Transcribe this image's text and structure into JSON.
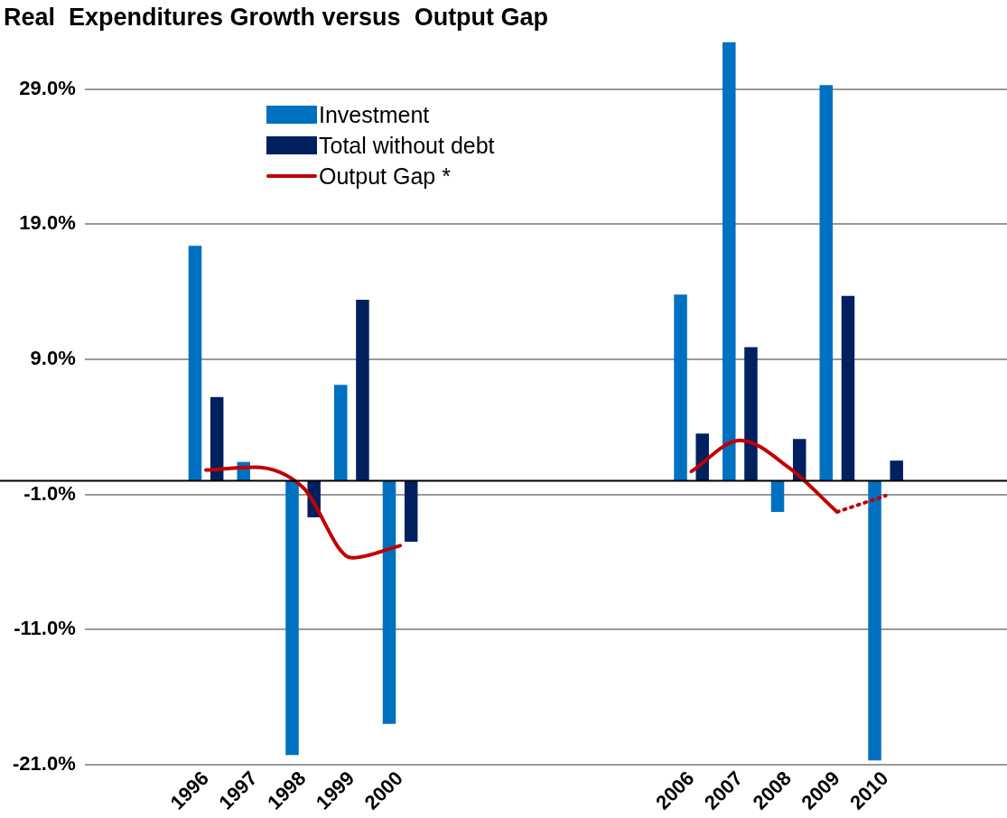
{
  "chart_data": {
    "type": "bar",
    "title": "Real  Expenditures Growth versus  Output Gap",
    "categories": [
      null,
      null,
      "1996",
      "1997",
      "1998",
      "1999",
      "2000",
      null,
      null,
      null,
      null,
      null,
      "2006",
      "2007",
      "2008",
      "2009",
      "2010",
      null,
      null
    ],
    "series": [
      {
        "name": "Investment",
        "color": "#0070c0",
        "values": [
          null,
          null,
          17.4,
          1.4,
          -20.3,
          7.1,
          -18.0,
          null,
          null,
          null,
          null,
          null,
          13.8,
          32.5,
          -2.3,
          29.3,
          -20.7,
          null,
          null
        ]
      },
      {
        "name": "Total without debt",
        "color": "#002060",
        "values": [
          null,
          null,
          6.2,
          null,
          -2.7,
          13.4,
          -4.5,
          null,
          null,
          null,
          null,
          null,
          3.5,
          9.9,
          3.1,
          13.7,
          1.5,
          null,
          null
        ]
      },
      {
        "name": "Output Gap *",
        "type": "line",
        "color": "#c00000",
        "line_style": "solid",
        "values": [
          null,
          null,
          0.8,
          1.0,
          -0.5,
          -5.7,
          -4.8,
          null,
          null,
          null,
          null,
          null,
          0.7,
          3.0,
          1.0,
          -2.3,
          null,
          null,
          null
        ]
      },
      {
        "type": "line",
        "color": "#c00000",
        "line_style": "dotted",
        "values": [
          null,
          null,
          null,
          null,
          null,
          null,
          null,
          null,
          null,
          null,
          null,
          null,
          null,
          null,
          null,
          -2.3,
          -1.1,
          null,
          null
        ]
      }
    ],
    "ylim": [
      -21,
      32.5
    ],
    "yticks": [
      {
        "value": -21,
        "label": "-21.0%"
      },
      {
        "value": -11,
        "label": "-11.0%"
      },
      {
        "value": -1,
        "label": "-1.0%"
      },
      {
        "value": 9,
        "label": "9.0%"
      },
      {
        "value": 19,
        "label": "19.0%"
      },
      {
        "value": 29,
        "label": "29.0%"
      }
    ],
    "grid": "y",
    "legend": "top left",
    "marker": "none",
    "ref_lines": [
      {
        "axis": "y",
        "value": 0,
        "color": "#000000"
      }
    ]
  }
}
